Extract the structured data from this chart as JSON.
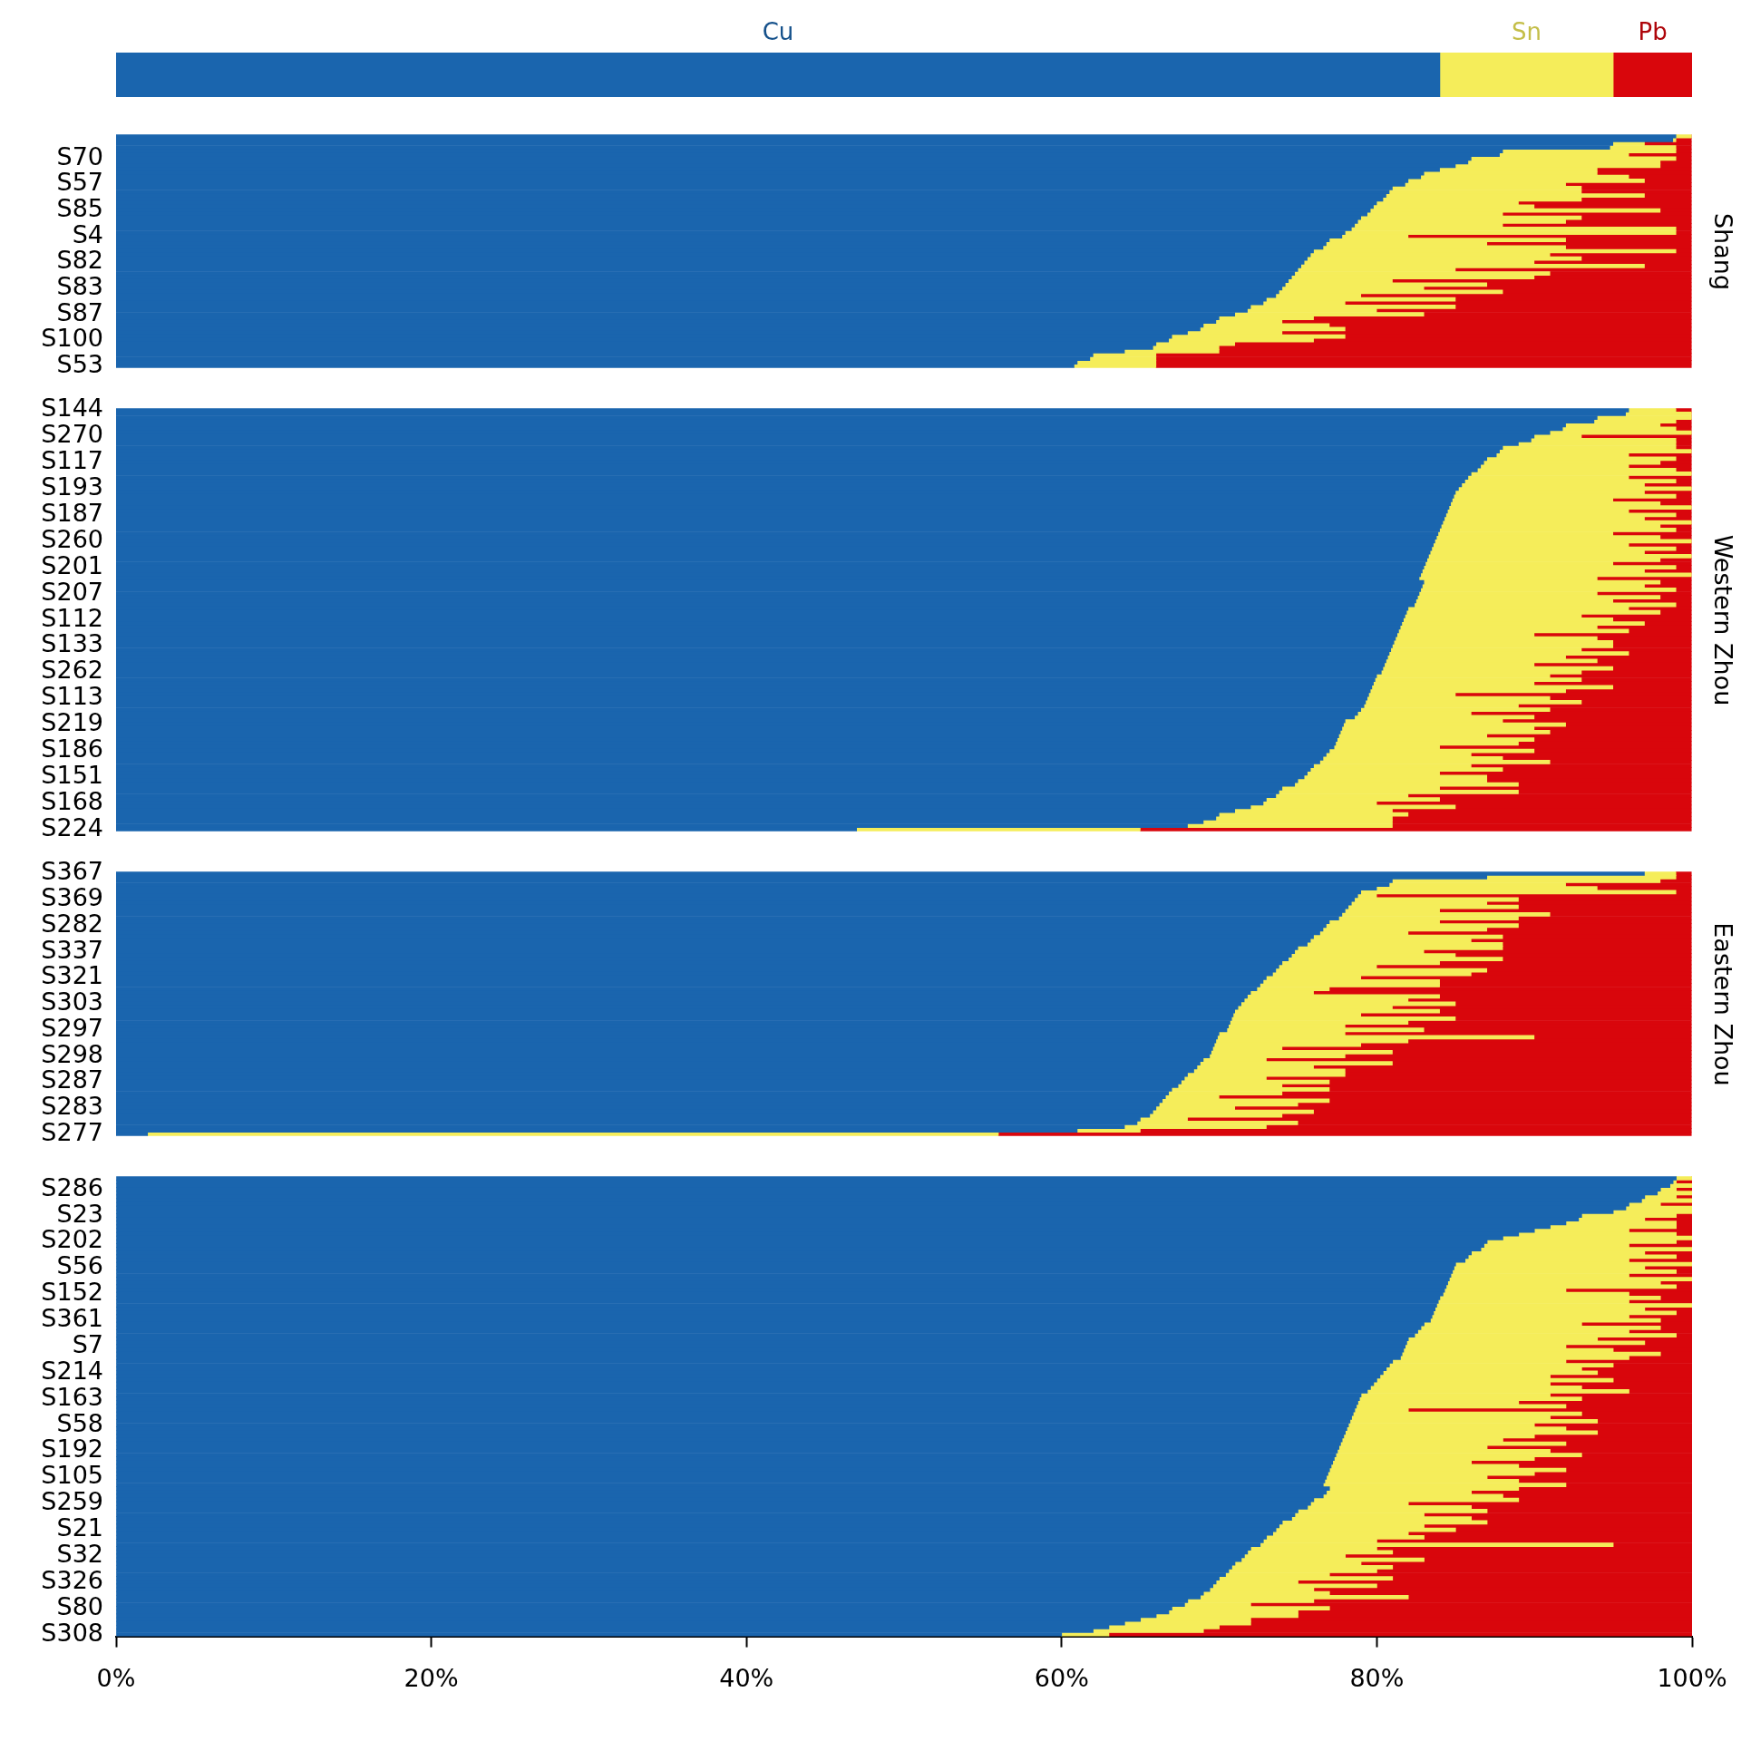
{
  "chart_data": [
    {
      "type": "bar",
      "orientation": "horizontal",
      "stacked": true,
      "tick_labels": false,
      "categories": [
        null
      ],
      "xlim": [
        0,
        100
      ],
      "series": [
        {
          "name": "Cu",
          "color": "#1a65ae",
          "values": [
            84
          ]
        },
        {
          "name": "Sn",
          "color": "#f5ed5a",
          "values": [
            11
          ]
        },
        {
          "name": "Pb",
          "color": "#d9060c",
          "values": [
            5
          ]
        }
      ]
    },
    {
      "type": "bar",
      "orientation": "horizontal",
      "stacked": true,
      "tick_labels": "y",
      "y2label": "Shang",
      "xlim": [
        0,
        100
      ],
      "categories": [
        null,
        null,
        null,
        null,
        null,
        null,
        "S70",
        null,
        null,
        null,
        null,
        null,
        null,
        "S57",
        null,
        null,
        null,
        null,
        null,
        null,
        "S85",
        null,
        null,
        null,
        null,
        null,
        null,
        "S4",
        null,
        null,
        null,
        null,
        null,
        null,
        "S82",
        null,
        null,
        null,
        null,
        null,
        null,
        "S83",
        null,
        null,
        null,
        null,
        null,
        null,
        "S87",
        null,
        null,
        null,
        null,
        null,
        null,
        "S100",
        null,
        null,
        null,
        null,
        null,
        null,
        "S53"
      ],
      "series": [
        {
          "color": "#1a65ae",
          "values": [
            99,
            98.8,
            95,
            94.8,
            88,
            87.8,
            86,
            85.8,
            85,
            84,
            83,
            82.8,
            82,
            81.8,
            81,
            80.8,
            80.6,
            80.4,
            80,
            79.8,
            79.6,
            79.4,
            79,
            78.8,
            78.6,
            78.4,
            78,
            77.8,
            77,
            76.8,
            76.6,
            76,
            75.8,
            75.6,
            75.4,
            75.2,
            75,
            74.8,
            74.6,
            74.4,
            74.2,
            74,
            73.8,
            73.6,
            73,
            72.8,
            72,
            71.8,
            71,
            70,
            69.8,
            69,
            68.8,
            68,
            67,
            66.8,
            66,
            65.8,
            64,
            62,
            61.8,
            61,
            60.8
          ]
        },
        {
          "color": "#f5ed5a",
          "values": [
            1,
            0.2,
            2,
            4.2,
            11,
            8.2,
            13,
            12.2,
            13,
            10,
            11,
            13.2,
            15,
            10.2,
            12,
            12.2,
            16.4,
            12.6,
            9,
            10.2,
            18.4,
            8.6,
            14,
            13.2,
            9.4,
            20.6,
            21,
            4.2,
            15,
            10.2,
            15.4,
            23,
            15.2,
            17.4,
            14.6,
            21.8,
            10,
            16.2,
            15.4,
            6.6,
            12.8,
            9,
            14.2,
            5.4,
            12,
            5.2,
            13,
            8.2,
            12,
            6,
            4.2,
            8,
            9.2,
            6,
            11,
            9.2,
            5,
            4.2,
            6,
            4,
            4.2,
            5,
            5.2
          ]
        },
        {
          "color": "#d9060c",
          "values": [
            0,
            1,
            3,
            1,
            1,
            4,
            1,
            2,
            2,
            6,
            6,
            4,
            3,
            8,
            7,
            7,
            3,
            7,
            11,
            10,
            2,
            12,
            7,
            8,
            12,
            1,
            1,
            18,
            8,
            13,
            8,
            1,
            9,
            7,
            10,
            3,
            15,
            9,
            10,
            19,
            13,
            17,
            12,
            21,
            15,
            22,
            15,
            20,
            17,
            24,
            26,
            23,
            22,
            26,
            22,
            24,
            29,
            30,
            30,
            34,
            34,
            34,
            34
          ]
        }
      ]
    },
    {
      "type": "bar",
      "orientation": "horizontal",
      "stacked": true,
      "tick_labels": "y",
      "y2label": "Western Zhou",
      "xlim": [
        0,
        100
      ],
      "categories": [
        "S144",
        null,
        null,
        null,
        null,
        null,
        null,
        "S270",
        null,
        null,
        null,
        null,
        null,
        null,
        "S117",
        null,
        null,
        null,
        null,
        null,
        null,
        "S193",
        null,
        null,
        null,
        null,
        null,
        null,
        "S187",
        null,
        null,
        null,
        null,
        null,
        null,
        "S260",
        null,
        null,
        null,
        null,
        null,
        null,
        "S201",
        null,
        null,
        null,
        null,
        null,
        null,
        "S207",
        null,
        null,
        null,
        null,
        null,
        null,
        "S112",
        null,
        null,
        null,
        null,
        null,
        null,
        "S133",
        null,
        null,
        null,
        null,
        null,
        null,
        "S262",
        null,
        null,
        null,
        null,
        null,
        null,
        "S113",
        null,
        null,
        null,
        null,
        null,
        null,
        "S219",
        null,
        null,
        null,
        null,
        null,
        null,
        "S186",
        null,
        null,
        null,
        null,
        null,
        null,
        "S151",
        null,
        null,
        null,
        null,
        null,
        null,
        "S168",
        null,
        null,
        null,
        null,
        null,
        null,
        "S224"
      ],
      "series": [
        {
          "color": "#1a65ae",
          "values": [
            96,
            95.8,
            94,
            93.8,
            92,
            91.8,
            91,
            90,
            89.8,
            89,
            88,
            87.8,
            87.6,
            87,
            86.8,
            86.6,
            86.4,
            86,
            85.8,
            85.6,
            85.4,
            85.2,
            85,
            84.9,
            84.8,
            84.7,
            84.6,
            84.5,
            84.4,
            84.3,
            84.2,
            84.1,
            84,
            83.9,
            83.8,
            83.7,
            83.6,
            83.5,
            83.4,
            83.3,
            83.2,
            83.1,
            83,
            82.9,
            82.8,
            82.7,
            83,
            82.9,
            82.8,
            82.7,
            82.6,
            82.5,
            82.4,
            82,
            81.9,
            81.8,
            81.7,
            81.6,
            81.5,
            81.4,
            81.3,
            81.2,
            81.1,
            81,
            80.9,
            80.8,
            80.7,
            80.6,
            80.5,
            80.4,
            80.3,
            80,
            79.9,
            79.8,
            79.7,
            79.6,
            79.5,
            79.4,
            79.3,
            79.2,
            79,
            78.8,
            78.6,
            78,
            77.9,
            77.8,
            77.7,
            77.6,
            77.5,
            77.4,
            77.3,
            77,
            76.8,
            76.6,
            76.4,
            76,
            75.8,
            75.6,
            75.4,
            75,
            74.8,
            74,
            73.8,
            73.6,
            73,
            72.8,
            72,
            71,
            70,
            69.8,
            69,
            68,
            47
          ]
        },
        {
          "color": "#f5ed5a",
          "values": [
            3,
            4.2,
            6,
            5.2,
            6,
            7.2,
            9,
            3,
            9.2,
            10,
            11,
            12.2,
            8.4,
            12,
            11.2,
            9.4,
            12.6,
            14,
            10.2,
            13.4,
            11.6,
            14.8,
            12,
            14.1,
            10.2,
            13.3,
            15.4,
            11.5,
            14.6,
            12.7,
            15.8,
            13.9,
            15,
            11.1,
            14.2,
            16.3,
            12.4,
            15.5,
            13.6,
            16.7,
            14.8,
            11.9,
            16,
            14.1,
            17.2,
            11.3,
            15,
            14.1,
            16.2,
            11.3,
            15.4,
            12.5,
            16.6,
            14,
            16.1,
            11.2,
            13.3,
            15.4,
            12.5,
            14.6,
            8.7,
            12.8,
            13.9,
            14,
            12.1,
            15.2,
            11.3,
            13.4,
            9.5,
            14.6,
            12.7,
            11,
            13.1,
            10.2,
            15.3,
            12.4,
            5.5,
            11.6,
            13.7,
            9.8,
            12,
            7.2,
            11.4,
            10,
            14.1,
            12.2,
            13.3,
            9.4,
            12.5,
            11.6,
            6.7,
            13,
            9.2,
            11.4,
            14.6,
            10,
            12.2,
            8.4,
            11.6,
            12,
            14.2,
            10,
            15.2,
            8.4,
            11,
            7.2,
            13,
            10,
            12,
            11.2,
            12,
            13,
            18
          ]
        },
        {
          "color": "#d9060c",
          "values": [
            1,
            0,
            0,
            1,
            2,
            1,
            0,
            7,
            1,
            1,
            1,
            0,
            4,
            1,
            2,
            4,
            1,
            0,
            4,
            1,
            3,
            0,
            3,
            1,
            5,
            2,
            0,
            4,
            1,
            3,
            0,
            2,
            1,
            5,
            2,
            0,
            4,
            1,
            3,
            0,
            2,
            5,
            1,
            3,
            0,
            6,
            2,
            3,
            1,
            6,
            2,
            5,
            1,
            4,
            2,
            7,
            5,
            3,
            6,
            4,
            10,
            6,
            5,
            5,
            7,
            4,
            8,
            6,
            10,
            5,
            7,
            9,
            7,
            10,
            5,
            8,
            15,
            9,
            7,
            11,
            9,
            14,
            10,
            12,
            8,
            10,
            9,
            13,
            10,
            11,
            16,
            10,
            14,
            12,
            9,
            14,
            12,
            16,
            13,
            13,
            11,
            16,
            11,
            18,
            16,
            20,
            15,
            19,
            18,
            19,
            19,
            19,
            35
          ]
        }
      ]
    },
    {
      "type": "bar",
      "orientation": "horizontal",
      "stacked": true,
      "tick_labels": "y",
      "y2label": "Eastern Zhou",
      "xlim": [
        0,
        100
      ],
      "categories": [
        "S367",
        null,
        null,
        null,
        null,
        null,
        null,
        "S369",
        null,
        null,
        null,
        null,
        null,
        null,
        "S282",
        null,
        null,
        null,
        null,
        null,
        null,
        "S337",
        null,
        null,
        null,
        null,
        null,
        null,
        "S321",
        null,
        null,
        null,
        null,
        null,
        null,
        "S303",
        null,
        null,
        null,
        null,
        null,
        null,
        "S297",
        null,
        null,
        null,
        null,
        null,
        null,
        "S298",
        null,
        null,
        null,
        null,
        null,
        null,
        "S287",
        null,
        null,
        null,
        null,
        null,
        null,
        "S283",
        null,
        null,
        null,
        null,
        null,
        null,
        "S277"
      ],
      "series": [
        {
          "color": "#1a65ae",
          "values": [
            97,
            87,
            81,
            80.8,
            80,
            79,
            78.8,
            78.6,
            78.4,
            78.2,
            78,
            77.8,
            77.6,
            77,
            76.8,
            76.6,
            76.4,
            76,
            75.8,
            75.6,
            75,
            74.8,
            74.6,
            74.4,
            74,
            73.8,
            73.6,
            73.4,
            73,
            72.8,
            72.6,
            72.4,
            72,
            71.8,
            71.6,
            71.4,
            71.2,
            71,
            70.9,
            70.8,
            70.7,
            70.6,
            70.5,
            70,
            69.9,
            69.8,
            69.7,
            69.6,
            69.5,
            69.4,
            69,
            68.8,
            68.6,
            68.4,
            68,
            67.8,
            67.6,
            67.4,
            67,
            66.8,
            66.6,
            66.4,
            66.2,
            66,
            65.8,
            65.6,
            65,
            64.8,
            64,
            61,
            2
          ]
        },
        {
          "color": "#f5ed5a",
          "values": [
            2,
            12,
            17,
            11.2,
            14,
            20,
            1.2,
            10.4,
            8.6,
            10.8,
            6,
            13.2,
            11.4,
            7,
            12.2,
            10.4,
            5.6,
            12,
            10.2,
            12.4,
            13,
            8.2,
            10.4,
            13.6,
            10,
            6.2,
            13.4,
            12.6,
            6,
            11.2,
            11.4,
            4.6,
            4,
            12.2,
            10.4,
            13.6,
            9.8,
            13,
            8.1,
            14.2,
            11.3,
            7.4,
            12.5,
            8,
            20.1,
            12.2,
            9.3,
            4.4,
            11.5,
            8.6,
            4,
            12.2,
            7.4,
            9.6,
            10,
            5.2,
            9.4,
            6.6,
            10,
            7.2,
            3.4,
            10.6,
            8.8,
            5,
            10.2,
            8.4,
            3,
            10.2,
            9,
            4,
            54
          ]
        },
        {
          "color": "#d9060c",
          "values": [
            1,
            1,
            2,
            8,
            6,
            1,
            20,
            11,
            13,
            11,
            16,
            9,
            11,
            16,
            11,
            13,
            18,
            12,
            14,
            12,
            12,
            17,
            15,
            12,
            16,
            20,
            13,
            14,
            21,
            16,
            16,
            23,
            24,
            16,
            18,
            15,
            19,
            16,
            21,
            15,
            18,
            22,
            17,
            22,
            10,
            18,
            21,
            26,
            19,
            22,
            27,
            19,
            24,
            22,
            22,
            27,
            23,
            26,
            23,
            26,
            30,
            23,
            25,
            29,
            24,
            26,
            32,
            25,
            27,
            35,
            44
          ]
        }
      ]
    },
    {
      "type": "bar",
      "orientation": "horizontal",
      "stacked": true,
      "xlim": [
        0,
        100
      ],
      "xticks": [
        {
          "value": 0,
          "label": "0%"
        },
        {
          "value": 20,
          "label": "20%"
        },
        {
          "value": 40,
          "label": "40%"
        },
        {
          "value": 60,
          "label": "60%"
        },
        {
          "value": 80,
          "label": "80%"
        },
        {
          "value": 100,
          "label": "100%"
        }
      ],
      "categories": [
        null,
        null,
        null,
        "S286",
        null,
        null,
        null,
        null,
        null,
        null,
        "S23",
        null,
        null,
        null,
        null,
        null,
        null,
        "S202",
        null,
        null,
        null,
        null,
        null,
        null,
        "S56",
        null,
        null,
        null,
        null,
        null,
        null,
        "S152",
        null,
        null,
        null,
        null,
        null,
        null,
        "S361",
        null,
        null,
        null,
        null,
        null,
        null,
        "S7",
        null,
        null,
        null,
        null,
        null,
        null,
        "S214",
        null,
        null,
        null,
        null,
        null,
        null,
        "S163",
        null,
        null,
        null,
        null,
        null,
        null,
        "S58",
        null,
        null,
        null,
        null,
        null,
        null,
        "S192",
        null,
        null,
        null,
        null,
        null,
        null,
        "S105",
        null,
        null,
        null,
        null,
        null,
        null,
        "S259",
        null,
        null,
        null,
        null,
        null,
        null,
        "S21",
        null,
        null,
        null,
        null,
        null,
        null,
        "S32",
        null,
        null,
        null,
        null,
        null,
        null,
        "S326",
        null,
        null,
        null,
        null,
        null,
        null,
        "S80",
        null,
        null,
        null,
        null,
        null,
        null,
        "S308"
      ],
      "series": [
        {
          "color": "#1a65ae",
          "values": [
            99,
            98.8,
            98.6,
            98,
            97.8,
            97,
            96.8,
            96,
            95.8,
            95,
            93,
            92.8,
            92,
            91,
            90,
            89,
            88,
            87,
            86.8,
            86.6,
            86,
            85.8,
            85.6,
            85,
            84.9,
            84.8,
            84.7,
            84.6,
            84.5,
            84.4,
            84.3,
            84.2,
            84,
            83.9,
            83.8,
            83.7,
            83.6,
            83.5,
            83.4,
            83,
            82.8,
            82.6,
            82.4,
            82,
            81.9,
            81.8,
            81.7,
            81.6,
            81.5,
            81,
            80.8,
            80.6,
            80.4,
            80.2,
            80,
            79.8,
            79.6,
            79.4,
            79,
            78.9,
            78.8,
            78.7,
            78.6,
            78.5,
            78.4,
            78.3,
            78.2,
            78.1,
            78,
            77.9,
            77.8,
            77.7,
            77.6,
            77.5,
            77.4,
            77.3,
            77.2,
            77.1,
            77,
            76.9,
            76.8,
            76.7,
            76.6,
            77,
            76.8,
            76.6,
            76,
            75.8,
            75.6,
            75,
            74.8,
            74.6,
            74,
            73.8,
            73.6,
            73.4,
            73,
            72.8,
            72.6,
            72,
            71.8,
            71.6,
            71.4,
            71,
            70.8,
            70.6,
            70.4,
            70,
            69.8,
            69.6,
            69.4,
            69,
            68.8,
            68,
            67.8,
            67,
            66.8,
            66,
            65,
            64,
            63,
            62,
            60
          ]
        },
        {
          "color": "#f5ed5a",
          "values": [
            1,
            0.2,
            1.4,
            1,
            2.2,
            2,
            3.2,
            2,
            4.2,
            5,
            6,
            4.2,
            7,
            8,
            6,
            10,
            12,
            12,
            9.2,
            13.4,
            11,
            13.2,
            10.4,
            15,
            12.1,
            14.2,
            11.3,
            15.4,
            13.5,
            14.6,
            7.7,
            11.8,
            14,
            12.1,
            16.2,
            13.3,
            15.4,
            12.5,
            14.6,
            10,
            15.2,
            13.4,
            16.6,
            12,
            15.1,
            10.2,
            13.3,
            16.4,
            14.5,
            11,
            14.2,
            12.4,
            13.6,
            10.8,
            15,
            11.2,
            13.4,
            16.6,
            12,
            14.1,
            10.2,
            13.3,
            3.4,
            14.5,
            12.6,
            15.7,
            11.8,
            13.9,
            16,
            12.1,
            10.2,
            14.3,
            9.4,
            13.5,
            15.6,
            12.7,
            8.8,
            11.9,
            15,
            13.1,
            10.2,
            12.3,
            15.4,
            12,
            9.2,
            11.4,
            13,
            6.2,
            10.4,
            12,
            8.2,
            11.4,
            13,
            9.2,
            11.4,
            8.6,
            10,
            7.2,
            22.4,
            8,
            9.2,
            6.4,
            11.6,
            8,
            10.2,
            9.4,
            6.6,
            11,
            5.2,
            10.4,
            6.6,
            8,
            13.2,
            8,
            4.2,
            10,
            8.2,
            9,
            7,
            8,
            7,
            7,
            3
          ]
        },
        {
          "color": "#d9060c",
          "values": [
            0,
            1,
            0,
            1,
            0,
            1,
            0,
            2,
            0,
            0,
            1,
            3,
            1,
            1,
            4,
            1,
            0,
            1,
            4,
            0,
            3,
            1,
            4,
            0,
            3,
            1,
            4,
            0,
            2,
            1,
            8,
            4,
            2,
            4,
            0,
            3,
            1,
            4,
            2,
            7,
            2,
            4,
            1,
            6,
            3,
            8,
            5,
            2,
            4,
            8,
            5,
            7,
            6,
            9,
            5,
            9,
            7,
            4,
            9,
            7,
            11,
            8,
            18,
            7,
            9,
            6,
            10,
            8,
            6,
            10,
            12,
            8,
            13,
            9,
            7,
            10,
            14,
            11,
            8,
            10,
            13,
            11,
            8,
            11,
            14,
            12,
            11,
            18,
            14,
            13,
            17,
            14,
            13,
            17,
            15,
            18,
            17,
            20,
            5,
            20,
            19,
            22,
            17,
            21,
            19,
            20,
            23,
            19,
            25,
            20,
            24,
            23,
            18,
            24,
            28,
            23,
            25,
            25,
            28,
            28,
            30,
            31,
            37
          ]
        }
      ]
    }
  ]
}
